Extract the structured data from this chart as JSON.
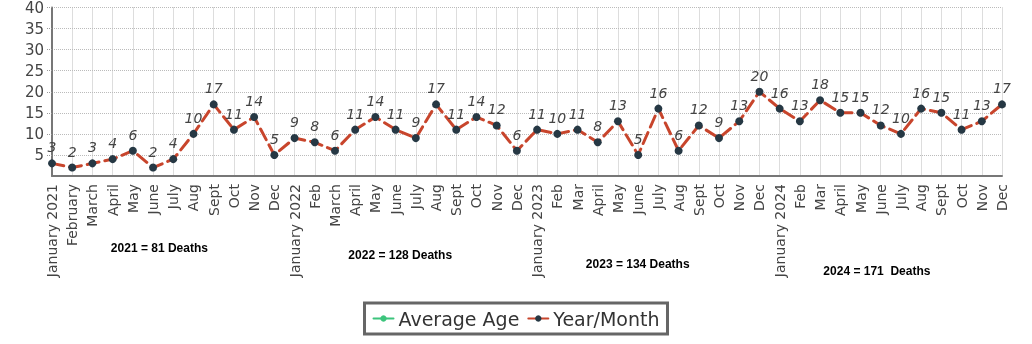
{
  "chart_data": {
    "type": "line",
    "categories": [
      "January 2021",
      "February",
      "March",
      "April",
      "May",
      "June",
      "July",
      "Aug",
      "Sept",
      "Oct",
      "Nov",
      "Dec",
      "January 2022",
      "Feb",
      "March",
      "April",
      "May",
      "June",
      "July",
      "Aug",
      "Sept",
      "Oct",
      "Nov",
      "Dec",
      "January 2023",
      "Feb",
      "Mar",
      "April",
      "May",
      "June",
      "July",
      "Aug",
      "Sept",
      "Oct",
      "Nov",
      "Dec",
      "January 2024",
      "Feb",
      "Mar",
      "April",
      "May",
      "June",
      "July",
      "Aug",
      "Sept",
      "Oct",
      "Nov",
      "Dec"
    ],
    "series": [
      {
        "name": "Average Age",
        "color": "#3cc47c",
        "values": [
          null,
          null,
          null,
          null,
          null,
          null,
          null,
          null,
          null,
          null,
          null,
          null,
          null,
          null,
          null,
          null,
          null,
          null,
          null,
          null,
          null,
          null,
          null,
          null,
          null,
          null,
          null,
          null,
          null,
          null,
          null,
          null,
          null,
          null,
          null,
          null,
          null,
          null,
          null,
          null,
          null,
          null,
          null,
          null,
          null,
          null,
          null,
          null
        ]
      },
      {
        "name": "Year/Month",
        "color": "#c8452c",
        "values": [
          3,
          2,
          3,
          4,
          6,
          2,
          4,
          10,
          17,
          11,
          14,
          5,
          9,
          8,
          6,
          11,
          14,
          11,
          9,
          17,
          11,
          14,
          12,
          6,
          11,
          10,
          11,
          8,
          13,
          5,
          16,
          6,
          12,
          9,
          13,
          20,
          16,
          13,
          18,
          15,
          15,
          12,
          10,
          16,
          15,
          11,
          13,
          17
        ]
      }
    ],
    "ylim": [
      0,
      40
    ],
    "yticks": [
      5,
      10,
      15,
      20,
      25,
      30,
      35,
      40
    ],
    "grid": true,
    "legend": "bottom",
    "marker": "circle",
    "line_style": "dashed",
    "data_labels": true,
    "annotations": [
      "2021 = 81 Deaths",
      "2022 = 128 Deaths",
      "2023 = 134 Deaths",
      "2024 = 171  Deaths"
    ]
  }
}
